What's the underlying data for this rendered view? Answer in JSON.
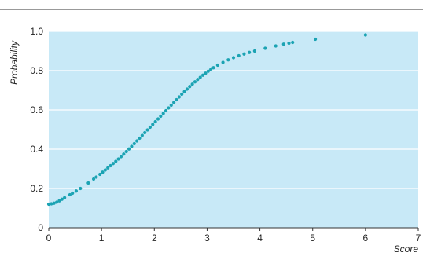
{
  "chart_data": {
    "type": "scatter",
    "title": "",
    "xlabel": "Score",
    "ylabel": "Probability",
    "xlim": [
      0,
      7
    ],
    "ylim": [
      0,
      1.0
    ],
    "x_ticks": [
      "0",
      "1",
      "2",
      "3",
      "4",
      "5",
      "6",
      "7"
    ],
    "y_ticks": [
      "0",
      "0.2",
      "0.4",
      "0.6",
      "0.8",
      "1.0"
    ],
    "grid": "horizontal",
    "legend": "none",
    "colors": {
      "plot_background": "#c8e9f7",
      "point": "#1ba3b3",
      "grid": "#ffffff"
    },
    "series": [
      {
        "points": [
          [
            0.0,
            0.12
          ],
          [
            0.05,
            0.122
          ],
          [
            0.1,
            0.125
          ],
          [
            0.15,
            0.13
          ],
          [
            0.2,
            0.137
          ],
          [
            0.25,
            0.145
          ],
          [
            0.3,
            0.153
          ],
          [
            0.4,
            0.168
          ],
          [
            0.45,
            0.176
          ],
          [
            0.52,
            0.187
          ],
          [
            0.6,
            0.2
          ],
          [
            0.75,
            0.228
          ],
          [
            0.85,
            0.248
          ],
          [
            0.9,
            0.258
          ],
          [
            0.97,
            0.272
          ],
          [
            1.02,
            0.283
          ],
          [
            1.07,
            0.294
          ],
          [
            1.12,
            0.305
          ],
          [
            1.17,
            0.316
          ],
          [
            1.22,
            0.327
          ],
          [
            1.27,
            0.338
          ],
          [
            1.32,
            0.35
          ],
          [
            1.37,
            0.362
          ],
          [
            1.42,
            0.375
          ],
          [
            1.47,
            0.388
          ],
          [
            1.52,
            0.401
          ],
          [
            1.57,
            0.414
          ],
          [
            1.62,
            0.428
          ],
          [
            1.67,
            0.442
          ],
          [
            1.72,
            0.456
          ],
          [
            1.77,
            0.47
          ],
          [
            1.82,
            0.484
          ],
          [
            1.87,
            0.498
          ],
          [
            1.92,
            0.512
          ],
          [
            1.97,
            0.526
          ],
          [
            2.02,
            0.54
          ],
          [
            2.07,
            0.554
          ],
          [
            2.12,
            0.568
          ],
          [
            2.17,
            0.582
          ],
          [
            2.22,
            0.596
          ],
          [
            2.27,
            0.61
          ],
          [
            2.32,
            0.624
          ],
          [
            2.37,
            0.638
          ],
          [
            2.42,
            0.652
          ],
          [
            2.47,
            0.666
          ],
          [
            2.52,
            0.68
          ],
          [
            2.57,
            0.693
          ],
          [
            2.62,
            0.706
          ],
          [
            2.67,
            0.719
          ],
          [
            2.72,
            0.731
          ],
          [
            2.77,
            0.743
          ],
          [
            2.82,
            0.755
          ],
          [
            2.87,
            0.766
          ],
          [
            2.92,
            0.777
          ],
          [
            2.97,
            0.787
          ],
          [
            3.02,
            0.797
          ],
          [
            3.07,
            0.806
          ],
          [
            3.12,
            0.815
          ],
          [
            3.2,
            0.828
          ],
          [
            3.3,
            0.842
          ],
          [
            3.4,
            0.855
          ],
          [
            3.5,
            0.866
          ],
          [
            3.6,
            0.876
          ],
          [
            3.7,
            0.885
          ],
          [
            3.8,
            0.893
          ],
          [
            3.9,
            0.9
          ],
          [
            4.1,
            0.914
          ],
          [
            4.3,
            0.926
          ],
          [
            4.45,
            0.935
          ],
          [
            4.55,
            0.94
          ],
          [
            4.62,
            0.944
          ],
          [
            5.05,
            0.96
          ],
          [
            6.0,
            0.982
          ]
        ]
      }
    ]
  }
}
